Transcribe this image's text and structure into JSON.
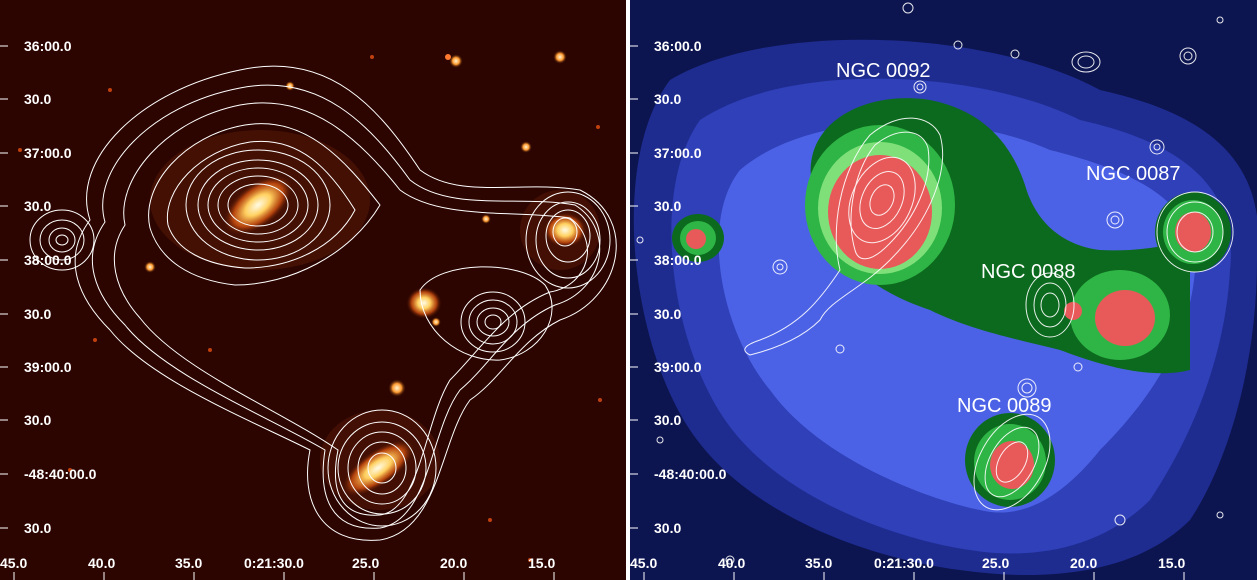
{
  "left_panel": {
    "dec_labels": [
      "36:00.0",
      "30.0",
      "37:00.0",
      "30.0",
      "38:00.0",
      "30.0",
      "39:00.0",
      "30.0",
      "-48:40:00.0",
      "30.0"
    ],
    "ra_labels": [
      "45.0",
      "40.0",
      "35.0",
      "0:21:30.0",
      "25.0",
      "20.0",
      "15.0"
    ],
    "colors": {
      "background": "#2c0500",
      "galaxy_core": "#fff6cc",
      "contour": "#ffffff"
    }
  },
  "right_panel": {
    "dec_labels": [
      "36:00.0",
      "30.0",
      "37:00.0",
      "30.0",
      "38:00.0",
      "30.0",
      "39:00.0",
      "30.0",
      "-48:40:00.0",
      "30.0"
    ],
    "ra_labels": [
      "45.0",
      "40.0",
      "35.0",
      "0:21:30.0",
      "25.0",
      "20.0",
      "15.0"
    ],
    "galaxy_labels": [
      "NGC 0092",
      "NGC 0087",
      "NGC 0088",
      "NGC 0089"
    ],
    "colors": {
      "background": "#0d1550",
      "blue_mid": "#2f40b8",
      "blue_light": "#4c62e6",
      "green_dark": "#0c6a1e",
      "green": "#2fb545",
      "green_light": "#7fe07a",
      "red": "#e85a5a"
    }
  }
}
